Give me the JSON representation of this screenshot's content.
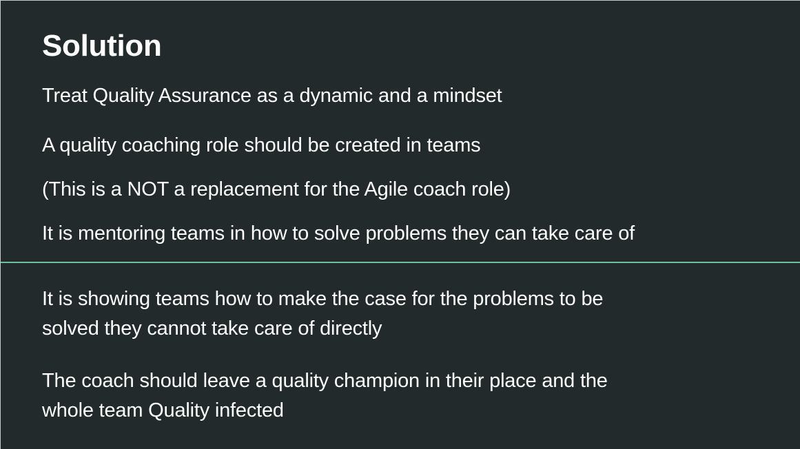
{
  "slide": {
    "title": "Solution",
    "top_lines": [
      "Treat Quality Assurance as a dynamic and a mindset",
      "A quality coaching role should be created in teams",
      "(This is a NOT a replacement for the Agile coach role)",
      "It is mentoring teams in how to solve problems they can take care of"
    ],
    "bottom_paragraphs": [
      {
        "line1": "It is showing teams how to make the case for the problems to be",
        "line2": "solved they cannot take care of directly"
      },
      {
        "line1": "The coach should leave a quality champion in their place and the",
        "line2": "whole team Quality infected"
      }
    ]
  },
  "colors": {
    "background": "#222a2c",
    "text": "#ffffff",
    "divider": "#6fbf9a"
  }
}
